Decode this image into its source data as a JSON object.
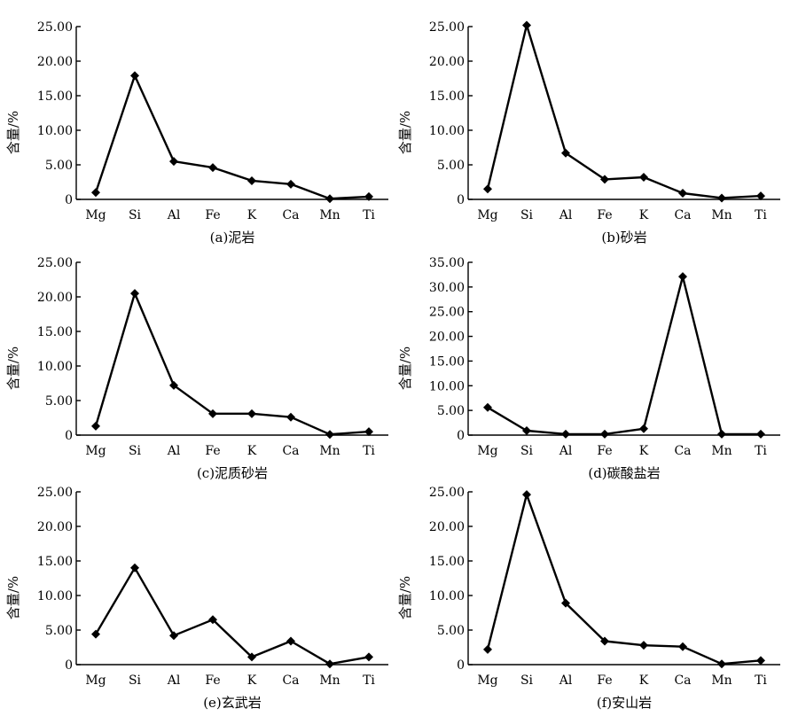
{
  "chart_data": [
    {
      "type": "line",
      "caption": "(a)泥岩",
      "ylabel": "含量/%",
      "categories": [
        "Mg",
        "Si",
        "Al",
        "Fe",
        "K",
        "Ca",
        "Mn",
        "Ti"
      ],
      "yticks": [
        "0",
        "5.00",
        "10.00",
        "15.00",
        "20.00",
        "25.00"
      ],
      "ylim": [
        0,
        25
      ],
      "series": [
        {
          "values": [
            1.0,
            17.9,
            5.5,
            4.6,
            2.7,
            2.2,
            0.1,
            0.4
          ]
        }
      ],
      "color": "#000000"
    },
    {
      "type": "line",
      "caption": "(b)砂岩",
      "ylabel": "含量/%",
      "categories": [
        "Mg",
        "Si",
        "Al",
        "Fe",
        "K",
        "Ca",
        "Mn",
        "Ti"
      ],
      "yticks": [
        "0",
        "5.00",
        "10.00",
        "15.00",
        "20.00",
        "25.00"
      ],
      "ylim": [
        0,
        25
      ],
      "series": [
        {
          "values": [
            1.5,
            25.2,
            6.7,
            2.9,
            3.2,
            0.9,
            0.2,
            0.5
          ]
        }
      ],
      "color": "#000000"
    },
    {
      "type": "line",
      "caption": "(c)泥质砂岩",
      "ylabel": "含量/%",
      "categories": [
        "Mg",
        "Si",
        "Al",
        "Fe",
        "K",
        "Ca",
        "Mn",
        "Ti"
      ],
      "yticks": [
        "0",
        "5.00",
        "10.00",
        "15.00",
        "20.00",
        "25.00"
      ],
      "ylim": [
        0,
        25
      ],
      "series": [
        {
          "values": [
            1.3,
            20.5,
            7.2,
            3.1,
            3.1,
            2.6,
            0.1,
            0.5
          ]
        }
      ],
      "color": "#000000"
    },
    {
      "type": "line",
      "caption": "(d)碳酸盐岩",
      "ylabel": "含量/%",
      "categories": [
        "Mg",
        "Si",
        "Al",
        "Fe",
        "K",
        "Ca",
        "Mn",
        "Ti"
      ],
      "yticks": [
        "0",
        "5.00",
        "10.00",
        "15.00",
        "20.00",
        "25.00",
        "30.00",
        "35.00"
      ],
      "ylim": [
        0,
        35
      ],
      "series": [
        {
          "values": [
            5.6,
            0.9,
            0.2,
            0.2,
            1.3,
            32.1,
            0.2,
            0.2
          ]
        }
      ],
      "color": "#000000"
    },
    {
      "type": "line",
      "caption": "(e)玄武岩",
      "ylabel": "含量/%",
      "categories": [
        "Mg",
        "Si",
        "Al",
        "Fe",
        "K",
        "Ca",
        "Mn",
        "Ti"
      ],
      "yticks": [
        "0",
        "5.00",
        "10.00",
        "15.00",
        "20.00",
        "25.00"
      ],
      "ylim": [
        0,
        25
      ],
      "series": [
        {
          "values": [
            4.4,
            14.0,
            4.2,
            6.5,
            1.1,
            3.4,
            0.1,
            1.1
          ]
        }
      ],
      "color": "#000000"
    },
    {
      "type": "line",
      "caption": "(f)安山岩",
      "ylabel": "含量/%",
      "categories": [
        "Mg",
        "Si",
        "Al",
        "Fe",
        "K",
        "Ca",
        "Mn",
        "Ti"
      ],
      "yticks": [
        "0",
        "5.00",
        "10.00",
        "15.00",
        "20.00",
        "25.00"
      ],
      "ylim": [
        0,
        25
      ],
      "series": [
        {
          "values": [
            2.2,
            24.6,
            8.9,
            3.4,
            2.8,
            2.6,
            0.1,
            0.6
          ]
        }
      ],
      "color": "#000000"
    }
  ]
}
